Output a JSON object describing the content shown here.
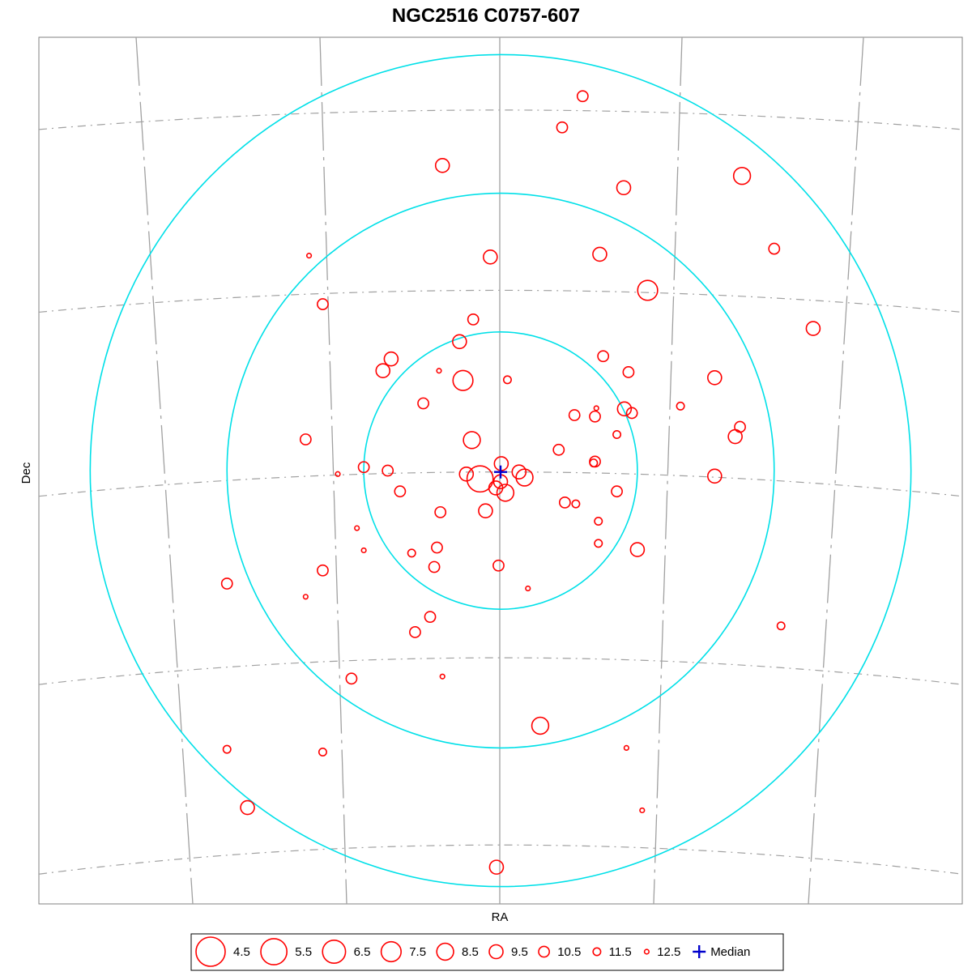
{
  "chart_data": {
    "type": "scatter",
    "title": "NGC2516  C0757-607",
    "xlabel": "RA",
    "ylabel": "Dec",
    "size_encoding": "magnitude",
    "center": {
      "x": 0,
      "y": 0
    },
    "rings": [
      0.2,
      0.4,
      0.6
    ],
    "xlim": [
      -0.675,
      0.675
    ],
    "ylim": [
      -0.625,
      0.625
    ],
    "ring_color": "#00e0e8",
    "marker_color": "#ff0000",
    "median_color": "#0000cc",
    "grid_color": "#a0a0a0",
    "legend": {
      "entries": [
        {
          "label": "4.5",
          "mag": 4.5
        },
        {
          "label": "5.5",
          "mag": 5.5
        },
        {
          "label": "6.5",
          "mag": 6.5
        },
        {
          "label": "7.5",
          "mag": 7.5
        },
        {
          "label": "8.5",
          "mag": 8.5
        },
        {
          "label": "9.5",
          "mag": 9.5
        },
        {
          "label": "10.5",
          "mag": 10.5
        },
        {
          "label": "11.5",
          "mag": 11.5
        },
        {
          "label": "12.5",
          "mag": 12.5
        }
      ],
      "median_label": "Median",
      "placement": "bottom"
    },
    "median": {
      "x": 0.0,
      "y": -0.002
    },
    "stars": [
      {
        "x": 0.12,
        "y": 0.54,
        "mag": 10.5
      },
      {
        "x": 0.09,
        "y": 0.495,
        "mag": 10.5
      },
      {
        "x": -0.085,
        "y": 0.44,
        "mag": 9.5
      },
      {
        "x": 0.18,
        "y": 0.408,
        "mag": 9.5
      },
      {
        "x": 0.353,
        "y": 0.425,
        "mag": 8.5
      },
      {
        "x": -0.28,
        "y": 0.31,
        "mag": 12.5
      },
      {
        "x": -0.015,
        "y": 0.308,
        "mag": 9.5
      },
      {
        "x": 0.145,
        "y": 0.312,
        "mag": 9.5
      },
      {
        "x": 0.4,
        "y": 0.32,
        "mag": 10.5
      },
      {
        "x": 0.215,
        "y": 0.26,
        "mag": 7.5
      },
      {
        "x": -0.26,
        "y": 0.24,
        "mag": 10.5
      },
      {
        "x": -0.04,
        "y": 0.218,
        "mag": 10.5
      },
      {
        "x": 0.457,
        "y": 0.205,
        "mag": 9.5
      },
      {
        "x": -0.06,
        "y": 0.186,
        "mag": 9.5
      },
      {
        "x": 0.15,
        "y": 0.165,
        "mag": 10.5
      },
      {
        "x": -0.16,
        "y": 0.161,
        "mag": 9.5
      },
      {
        "x": -0.172,
        "y": 0.144,
        "mag": 9.5
      },
      {
        "x": -0.09,
        "y": 0.144,
        "mag": 12.5
      },
      {
        "x": 0.187,
        "y": 0.142,
        "mag": 10.5
      },
      {
        "x": -0.055,
        "y": 0.13,
        "mag": 7.5
      },
      {
        "x": 0.01,
        "y": 0.131,
        "mag": 11.5
      },
      {
        "x": 0.313,
        "y": 0.134,
        "mag": 9.5
      },
      {
        "x": -0.113,
        "y": 0.097,
        "mag": 10.5
      },
      {
        "x": 0.263,
        "y": 0.093,
        "mag": 11.5
      },
      {
        "x": 0.14,
        "y": 0.09,
        "mag": 12.5
      },
      {
        "x": 0.181,
        "y": 0.089,
        "mag": 9.5
      },
      {
        "x": 0.192,
        "y": 0.083,
        "mag": 10.5
      },
      {
        "x": 0.108,
        "y": 0.08,
        "mag": 10.5
      },
      {
        "x": 0.138,
        "y": 0.078,
        "mag": 10.5
      },
      {
        "x": 0.35,
        "y": 0.063,
        "mag": 10.5
      },
      {
        "x": 0.343,
        "y": 0.049,
        "mag": 9.5
      },
      {
        "x": 0.17,
        "y": 0.052,
        "mag": 11.5
      },
      {
        "x": -0.285,
        "y": 0.045,
        "mag": 10.5
      },
      {
        "x": -0.042,
        "y": 0.044,
        "mag": 8.5
      },
      {
        "x": 0.085,
        "y": 0.03,
        "mag": 10.5
      },
      {
        "x": 0.138,
        "y": 0.013,
        "mag": 10.5
      },
      {
        "x": 0.136,
        "y": 0.011,
        "mag": 11.5
      },
      {
        "x": 0.001,
        "y": 0.01,
        "mag": 9.5
      },
      {
        "x": -0.2,
        "y": 0.005,
        "mag": 10.5
      },
      {
        "x": -0.165,
        "y": 0.0,
        "mag": 10.5
      },
      {
        "x": -0.238,
        "y": -0.005,
        "mag": 12.5
      },
      {
        "x": -0.05,
        "y": -0.005,
        "mag": 9.5
      },
      {
        "x": 0.027,
        "y": -0.002,
        "mag": 9.5
      },
      {
        "x": 0.035,
        "y": -0.01,
        "mag": 8.5
      },
      {
        "x": -0.03,
        "y": -0.012,
        "mag": 5.5
      },
      {
        "x": 0.313,
        "y": -0.008,
        "mag": 9.5
      },
      {
        "x": -0.007,
        "y": -0.025,
        "mag": 9.5
      },
      {
        "x": 0.0,
        "y": -0.016,
        "mag": 9.5
      },
      {
        "x": 0.007,
        "y": -0.032,
        "mag": 8.5
      },
      {
        "x": -0.147,
        "y": -0.03,
        "mag": 10.5
      },
      {
        "x": 0.17,
        "y": -0.03,
        "mag": 10.5
      },
      {
        "x": 0.094,
        "y": -0.046,
        "mag": 10.5
      },
      {
        "x": 0.11,
        "y": -0.048,
        "mag": 11.5
      },
      {
        "x": -0.088,
        "y": -0.06,
        "mag": 10.5
      },
      {
        "x": -0.022,
        "y": -0.058,
        "mag": 9.5
      },
      {
        "x": 0.143,
        "y": -0.073,
        "mag": 11.5
      },
      {
        "x": -0.21,
        "y": -0.083,
        "mag": 12.5
      },
      {
        "x": 0.143,
        "y": -0.105,
        "mag": 11.5
      },
      {
        "x": -0.2,
        "y": -0.115,
        "mag": 12.5
      },
      {
        "x": -0.093,
        "y": -0.111,
        "mag": 10.5
      },
      {
        "x": -0.13,
        "y": -0.119,
        "mag": 11.5
      },
      {
        "x": 0.2,
        "y": -0.114,
        "mag": 9.5
      },
      {
        "x": -0.26,
        "y": -0.144,
        "mag": 10.5
      },
      {
        "x": -0.097,
        "y": -0.139,
        "mag": 10.5
      },
      {
        "x": -0.003,
        "y": -0.137,
        "mag": 10.5
      },
      {
        "x": -0.4,
        "y": -0.163,
        "mag": 10.5
      },
      {
        "x": -0.285,
        "y": -0.182,
        "mag": 12.5
      },
      {
        "x": 0.04,
        "y": -0.17,
        "mag": 12.5
      },
      {
        "x": -0.103,
        "y": -0.211,
        "mag": 10.5
      },
      {
        "x": -0.125,
        "y": -0.233,
        "mag": 10.5
      },
      {
        "x": 0.41,
        "y": -0.224,
        "mag": 11.5
      },
      {
        "x": -0.218,
        "y": -0.3,
        "mag": 10.5
      },
      {
        "x": -0.085,
        "y": -0.297,
        "mag": 12.5
      },
      {
        "x": 0.058,
        "y": -0.368,
        "mag": 8.5
      },
      {
        "x": -0.4,
        "y": -0.402,
        "mag": 11.5
      },
      {
        "x": -0.26,
        "y": -0.406,
        "mag": 11.5
      },
      {
        "x": 0.184,
        "y": -0.4,
        "mag": 12.5
      },
      {
        "x": -0.37,
        "y": -0.486,
        "mag": 9.5
      },
      {
        "x": 0.207,
        "y": -0.49,
        "mag": 12.5
      },
      {
        "x": -0.006,
        "y": -0.572,
        "mag": 9.5
      }
    ]
  }
}
